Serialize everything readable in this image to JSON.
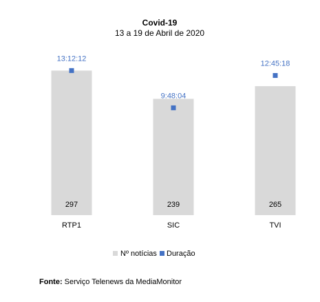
{
  "colors": {
    "bar": "#d9d9d9",
    "marker": "#4472c4",
    "duration_label": "#4472c4",
    "text": "#000000"
  },
  "chart_data": {
    "type": "bar",
    "title": "Covid-19",
    "subtitle": "13 a 19 de Abril de 2020",
    "categories": [
      "RTP1",
      "SIC",
      "TVI"
    ],
    "series": [
      {
        "name": "Nº notícias",
        "type": "bar",
        "axis": "primary",
        "values": [
          297,
          239,
          265
        ],
        "data_labels": [
          "297",
          "239",
          "265"
        ],
        "label_position": "inside-base"
      },
      {
        "name": "Duração",
        "type": "scatter",
        "axis": "secondary",
        "values_seconds": [
          47532,
          35284,
          45918
        ],
        "data_labels": [
          "13:12:12",
          "9:48:04",
          "12:45:18"
        ],
        "label_position": "above"
      }
    ],
    "ylim_primary": [
      0,
      350
    ],
    "ylim_secondary_seconds": [
      0,
      56000
    ],
    "axes_visible": false,
    "grid": false,
    "legend": "bottom"
  },
  "source": {
    "label": "Fonte:",
    "text": "Serviço Telenews da MediaMonitor"
  }
}
